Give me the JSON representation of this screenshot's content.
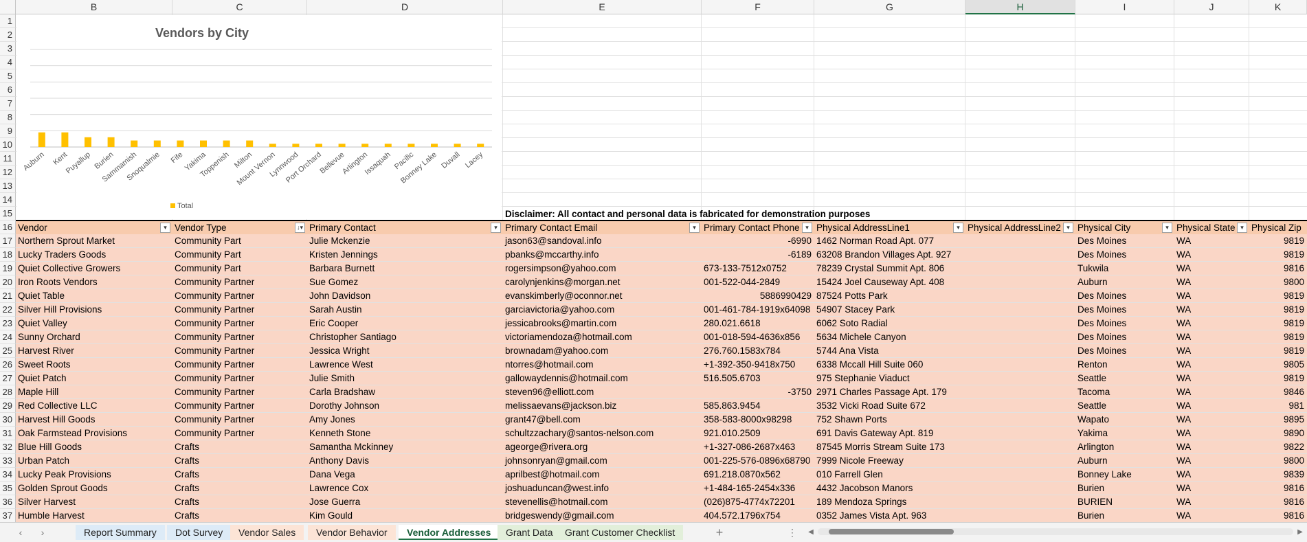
{
  "columns": [
    "B",
    "C",
    "D",
    "E",
    "F",
    "G",
    "H",
    "I",
    "J",
    "K"
  ],
  "rows": [
    "1",
    "2",
    "3",
    "4",
    "5",
    "6",
    "7",
    "8",
    "9",
    "10",
    "11",
    "12",
    "13",
    "14",
    "15",
    "16",
    "17",
    "18",
    "19",
    "20",
    "21",
    "22",
    "23",
    "24",
    "25",
    "26",
    "27",
    "28",
    "29",
    "30",
    "31",
    "32",
    "33",
    "34",
    "35",
    "36",
    "37"
  ],
  "selected_column": "H",
  "chart_data": {
    "type": "bar",
    "title": "Vendors by City",
    "categories": [
      "Auburn",
      "Kent",
      "Puyallup",
      "Burien",
      "Sammamish",
      "Snoqualmie",
      "Fife",
      "Yakima",
      "Toppenish",
      "Milton",
      "Mount Vernon",
      "Lynnwood",
      "Port Orchard",
      "Bellevue",
      "Arlington",
      "Issaquah",
      "Pacific",
      "Bonney Lake",
      "Duvall",
      "Lacey"
    ],
    "series": [
      {
        "name": "Total",
        "values": [
          9,
          9,
          6,
          6,
          4,
          4,
          4,
          4,
          4,
          4,
          2,
          2,
          2,
          2,
          2,
          2,
          2,
          2,
          2,
          2
        ]
      }
    ],
    "ylim": [
      0,
      60
    ],
    "grid": true,
    "legend": "bottom-left",
    "bar_color": "#ffc000"
  },
  "disclaimer": "Disclaimer: All contact and personal data is fabricated for demonstration purposes",
  "table": {
    "headers": [
      "Vendor",
      "Vendor Type",
      "Primary Contact",
      "Primary Contact Email",
      "Primary Contact Phone",
      "Physical AddressLine1",
      "Physical AddressLine2",
      "Physical City",
      "Physical State",
      "Physical Zip"
    ],
    "rows": [
      [
        "Northern Sprout Market",
        "Community Part",
        "Julie Mckenzie",
        "jason63@sandoval.info",
        "-6990",
        "1462 Norman Road Apt. 077",
        "",
        "Des Moines",
        "WA",
        "9819"
      ],
      [
        "Lucky Traders Goods",
        "Community Part",
        "Kristen Jennings",
        "pbanks@mccarthy.info",
        "-6189",
        "63208 Brandon Villages Apt. 927",
        "",
        "Des Moines",
        "WA",
        "9819"
      ],
      [
        "Quiet Collective Growers",
        "Community Part",
        "Barbara Burnett",
        "rogersimpson@yahoo.com",
        "673-133-7512x0752",
        "78239 Crystal Summit Apt. 806",
        "",
        "Tukwila",
        "WA",
        "9816"
      ],
      [
        "Iron Roots Vendors",
        "Community Partner",
        "Sue Gomez",
        "carolynjenkins@morgan.net",
        "001-522-044-2849",
        "15424 Joel Causeway Apt. 408",
        "",
        "Auburn",
        "WA",
        "9800"
      ],
      [
        "Quiet Table",
        "Community Partner",
        "John Davidson",
        "evanskimberly@oconnor.net",
        "5886990429",
        "87524 Potts Park",
        "",
        "Des Moines",
        "WA",
        "9819"
      ],
      [
        "Silver Hill Provisions",
        "Community Partner",
        "Sarah Austin",
        "garciavictoria@yahoo.com",
        "001-461-784-1919x64098",
        "54907 Stacey Park",
        "",
        "Des Moines",
        "WA",
        "9819"
      ],
      [
        "Quiet Valley",
        "Community Partner",
        "Eric Cooper",
        "jessicabrooks@martin.com",
        "280.021.6618",
        "6062 Soto Radial",
        "",
        "Des Moines",
        "WA",
        "9819"
      ],
      [
        "Sunny Orchard",
        "Community Partner",
        "Christopher Santiago",
        "victoriamendoza@hotmail.com",
        "001-018-594-4636x856",
        "5634 Michele Canyon",
        "",
        "Des Moines",
        "WA",
        "9819"
      ],
      [
        "Harvest River",
        "Community Partner",
        "Jessica Wright",
        "brownadam@yahoo.com",
        "276.760.1583x784",
        "5744 Ana Vista",
        "",
        "Des Moines",
        "WA",
        "9819"
      ],
      [
        "Sweet Roots",
        "Community Partner",
        "Lawrence West",
        "ntorres@hotmail.com",
        "+1-392-350-9418x750",
        "6338 Mccall Hill Suite 060",
        "",
        "Renton",
        "WA",
        "9805"
      ],
      [
        "Quiet Patch",
        "Community Partner",
        "Julie Smith",
        "gallowaydennis@hotmail.com",
        "516.505.6703",
        "975 Stephanie Viaduct",
        "",
        "Seattle",
        "WA",
        "9819"
      ],
      [
        "Maple Hill",
        "Community Partner",
        "Carla Bradshaw",
        "steven96@elliott.com",
        "-3750",
        "2971 Charles Passage Apt. 179",
        "",
        "Tacoma",
        "WA",
        "9846"
      ],
      [
        "Red Collective LLC",
        "Community Partner",
        "Dorothy Johnson",
        "melissaevans@jackson.biz",
        "585.863.9454",
        "3532 Vicki Road Suite 672",
        "",
        "Seattle",
        "WA",
        "981"
      ],
      [
        "Harvest Hill Goods",
        "Community Partner",
        "Amy Jones",
        "grant47@bell.com",
        "358-583-8000x98298",
        "752 Shawn Ports",
        "",
        "Wapato",
        "WA",
        "9895"
      ],
      [
        "Oak Farmstead Provisions",
        "Community Partner",
        "Kenneth Stone",
        "schultzzachary@santos-nelson.com",
        "921.010.2509",
        "691 Davis Gateway Apt. 819",
        "",
        "Yakima",
        "WA",
        "9890"
      ],
      [
        "Blue Hill Goods",
        "Crafts",
        "Samantha Mckinney",
        "ageorge@rivera.org",
        "+1-327-086-2687x463",
        "87545 Morris Stream Suite 173",
        "",
        "Arlington",
        "WA",
        "9822"
      ],
      [
        "Urban Patch",
        "Crafts",
        "Anthony Davis",
        "johnsonryan@gmail.com",
        "001-225-576-0896x68790",
        "7999 Nicole Freeway",
        "",
        "Auburn",
        "WA",
        "9800"
      ],
      [
        "Lucky Peak Provisions",
        "Crafts",
        "Dana Vega",
        "aprilbest@hotmail.com",
        "691.218.0870x562",
        "010 Farrell Glen",
        "",
        "Bonney Lake",
        "WA",
        "9839"
      ],
      [
        "Golden Sprout Goods",
        "Crafts",
        "Lawrence Cox",
        "joshuaduncan@west.info",
        "+1-484-165-2454x336",
        "4432 Jacobson Manors",
        "",
        "Burien",
        "WA",
        "9816"
      ],
      [
        "Silver Harvest",
        "Crafts",
        "Jose Guerra",
        "stevenellis@hotmail.com",
        "(026)875-4774x72201",
        "189 Mendoza Springs",
        "",
        "BURIEN",
        "WA",
        "9816"
      ],
      [
        "Humble Harvest",
        "Crafts",
        "Kim Gould",
        "bridgeswendy@gmail.com",
        "404.572.1796x754",
        "0352 James Vista Apt. 963",
        "",
        "Burien",
        "WA",
        "9816"
      ]
    ],
    "right_aligned_phone": [
      true,
      true,
      false,
      false,
      true,
      false,
      false,
      false,
      false,
      false,
      false,
      true,
      false,
      false,
      false,
      false,
      false,
      false,
      false,
      false,
      false
    ]
  },
  "tabs": [
    {
      "label": "Report Summary",
      "color": "#ddebf7"
    },
    {
      "label": "Dot Survey",
      "color": "#ddebf7"
    },
    {
      "label": "Vendor Sales",
      "color": "#fce4d6"
    },
    {
      "label": "Vendor Behavior",
      "color": "#fce4d6"
    },
    {
      "label": "Vendor Addresses",
      "color": "#ffffff"
    },
    {
      "label": "Grant Data",
      "color": "#e2efda"
    },
    {
      "label": "Grant Customer Checklist",
      "color": "#e2efda"
    }
  ],
  "tabbar": {
    "add": "+",
    "more": "⋮",
    "prev": "‹",
    "next": "›",
    "scroll_left": "◀",
    "scroll_right": "▶"
  }
}
